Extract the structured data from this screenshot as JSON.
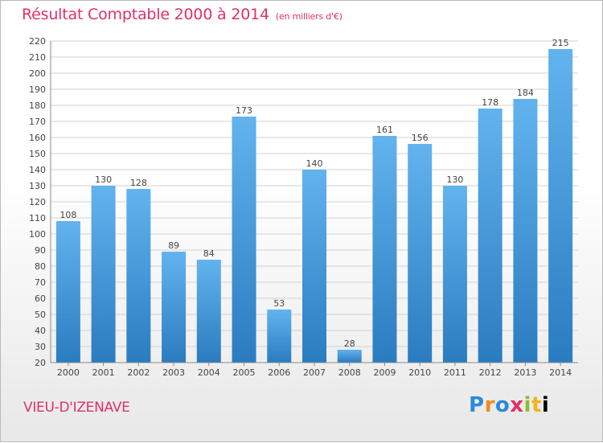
{
  "header": {
    "title": "Résultat Comptable 2000 à 2014",
    "subtitle": "(en milliers d'€)"
  },
  "footer": {
    "commune": "VIEU-D'IZENAVE",
    "logo": "Proxiti"
  },
  "colors": {
    "accent": "#e0306a",
    "bar_light": "#5fb0ec",
    "bar_dark": "#2a7fc4"
  },
  "chart_data": {
    "type": "bar",
    "title": "Résultat Comptable 2000 à 2014",
    "subtitle": "(en milliers d'€)",
    "xlabel": "",
    "ylabel": "",
    "categories": [
      "2000",
      "2001",
      "2002",
      "2003",
      "2004",
      "2005",
      "2006",
      "2007",
      "2008",
      "2009",
      "2010",
      "2011",
      "2012",
      "2013",
      "2014"
    ],
    "values": [
      108,
      130,
      128,
      89,
      84,
      173,
      53,
      140,
      28,
      161,
      156,
      130,
      178,
      184,
      215
    ],
    "ylim": [
      20,
      220
    ],
    "yticks": [
      20,
      30,
      40,
      50,
      60,
      70,
      80,
      90,
      100,
      110,
      120,
      130,
      140,
      150,
      160,
      170,
      180,
      190,
      200,
      210,
      220
    ],
    "grid": true,
    "legend": "none"
  }
}
